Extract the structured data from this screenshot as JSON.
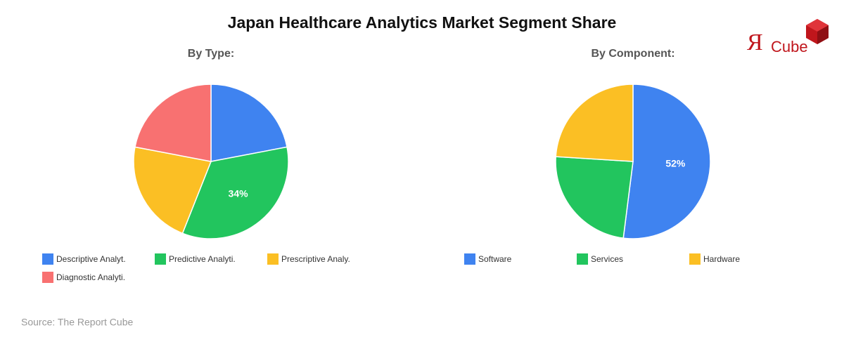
{
  "title": "Japan Healthcare Analytics Market Segment Share",
  "logo": {
    "mark": "Я",
    "text": "Cube"
  },
  "source": "Source: The Report Cube",
  "chart_data": [
    {
      "type": "pie",
      "title": "By Type:",
      "categories": [
        "Descriptive Analyt.",
        "Predictive Analyti.",
        "Prescriptive Analy.",
        "Diagnostic Analyti."
      ],
      "values": [
        22,
        34,
        22,
        22
      ],
      "value_labels": [
        null,
        "34%",
        null,
        null
      ],
      "colors": [
        "#3f83f0",
        "#22c55e",
        "#fbbf24",
        "#f87171"
      ]
    },
    {
      "type": "pie",
      "title": "By Component:",
      "categories": [
        "Software",
        "Services",
        "Hardware"
      ],
      "values": [
        52,
        24,
        24
      ],
      "value_labels": [
        "52%",
        null,
        null
      ],
      "colors": [
        "#3f83f0",
        "#22c55e",
        "#fbbf24"
      ]
    }
  ]
}
